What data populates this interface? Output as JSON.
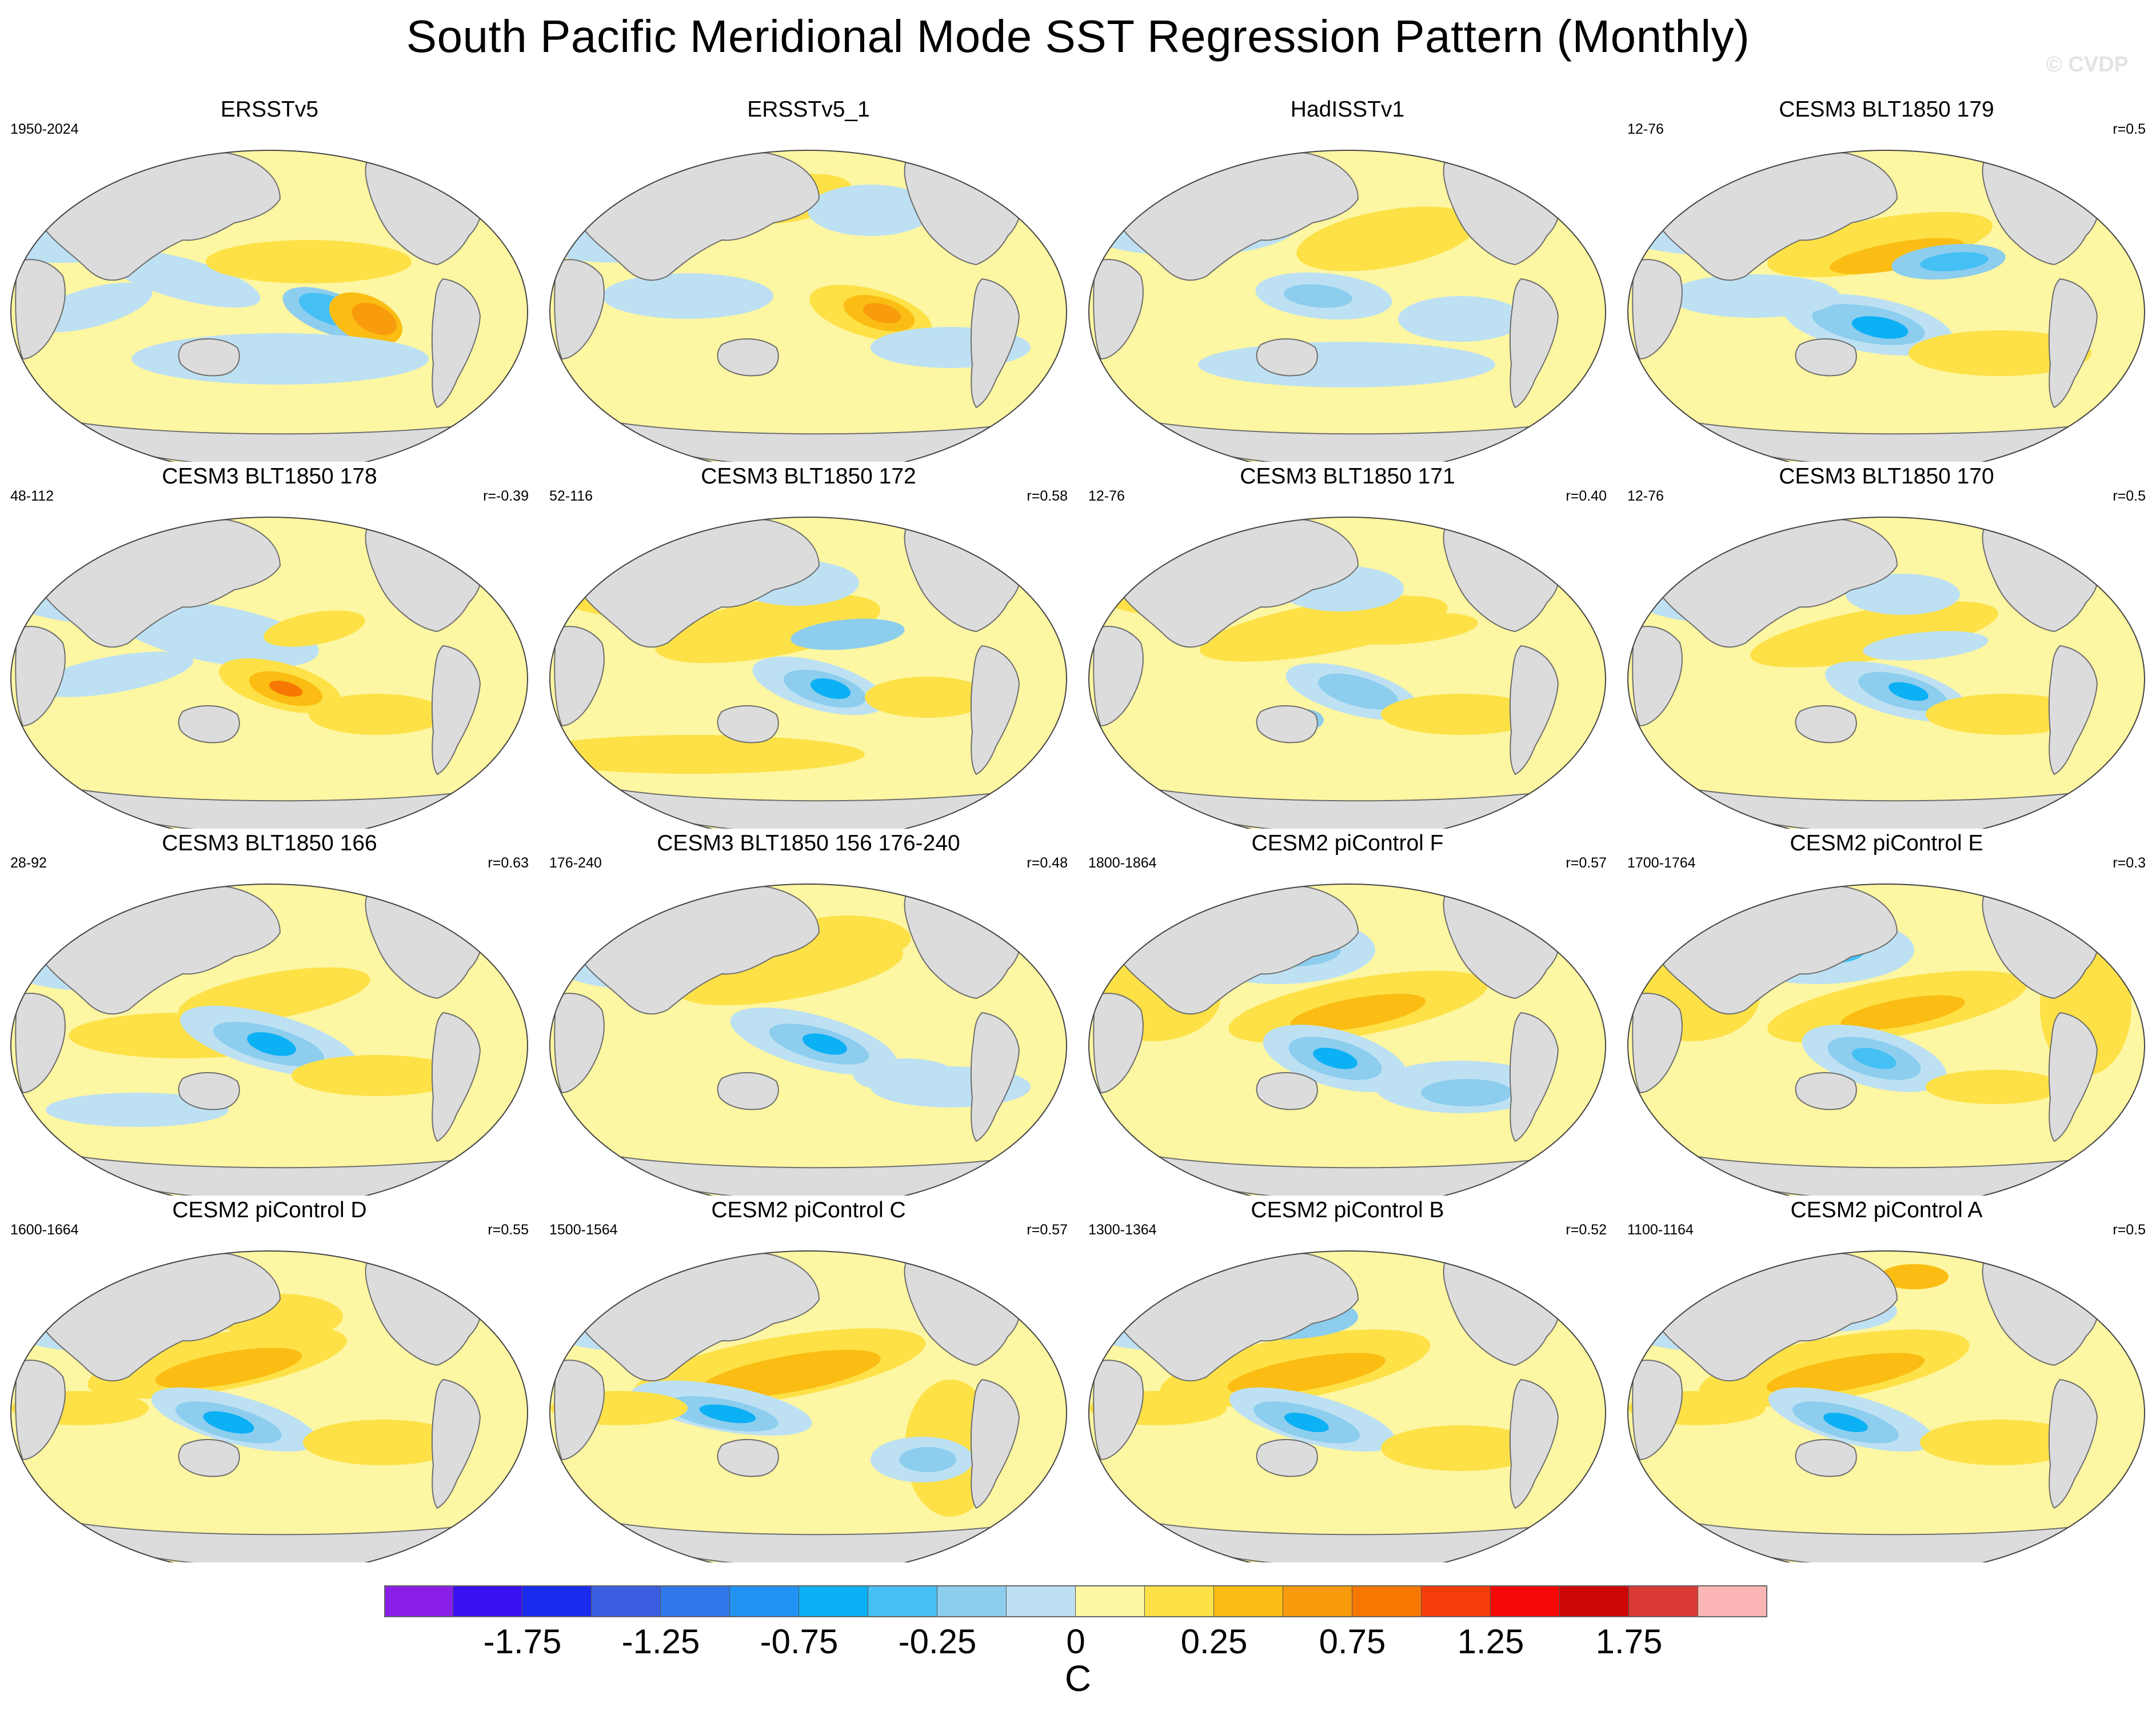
{
  "title": "South Pacific Meridional Mode SST Regression Pattern (Monthly)",
  "watermark": "© CVDP",
  "panels": [
    {
      "title": "ERSSTv5",
      "years": "1950-2024",
      "r": "",
      "variant": 0
    },
    {
      "title": "ERSSTv5_1",
      "years": "",
      "r": "",
      "variant": 1
    },
    {
      "title": "HadISSTv1",
      "years": "",
      "r": "",
      "variant": 2
    },
    {
      "title": "CESM3 BLT1850 179",
      "years": "12-76",
      "r": "r=0.5",
      "variant": 3
    },
    {
      "title": "CESM3 BLT1850 178",
      "years": "48-112",
      "r": "r=-0.39",
      "variant": 4
    },
    {
      "title": "CESM3 BLT1850 172",
      "years": "52-116",
      "r": "r=0.58",
      "variant": 5
    },
    {
      "title": "CESM3 BLT1850 171",
      "years": "12-76",
      "r": "r=0.40",
      "variant": 6
    },
    {
      "title": "CESM3 BLT1850 170",
      "years": "12-76",
      "r": "r=0.5",
      "variant": 7
    },
    {
      "title": "CESM3 BLT1850 166",
      "years": "28-92",
      "r": "r=0.63",
      "variant": 8
    },
    {
      "title": "CESM3 BLT1850 156 176-240",
      "years": "176-240",
      "r": "r=0.48",
      "variant": 9
    },
    {
      "title": "CESM2 piControl F",
      "years": "1800-1864",
      "r": "r=0.57",
      "variant": 10
    },
    {
      "title": "CESM2 piControl E",
      "years": "1700-1764",
      "r": "r=0.3",
      "variant": 11
    },
    {
      "title": "CESM2 piControl D",
      "years": "1600-1664",
      "r": "r=0.55",
      "variant": 12
    },
    {
      "title": "CESM2 piControl C",
      "years": "1500-1564",
      "r": "r=0.57",
      "variant": 13
    },
    {
      "title": "CESM2 piControl B",
      "years": "1300-1364",
      "r": "r=0.52",
      "variant": 14
    },
    {
      "title": "CESM2 piControl A",
      "years": "1100-1164",
      "r": "r=0.5",
      "variant": 15
    }
  ],
  "colorbar": {
    "unit": "C",
    "colors": [
      "#8a1de6",
      "#3a0ff2",
      "#1a2bf0",
      "#3b5ee0",
      "#2f78ea",
      "#2293f4",
      "#0cb0f5",
      "#45c0f4",
      "#8dcdee",
      "#bde1f3",
      "#fdf6a2",
      "#fde147",
      "#fbbd13",
      "#f89b0c",
      "#f67803",
      "#f63c09",
      "#f50808",
      "#cd0606",
      "#d93a35",
      "#fdb6b6"
    ],
    "tick_labels": [
      "-1.75",
      "-1.25",
      "-0.75",
      "-0.25",
      "0",
      "0.25",
      "0.75",
      "1.25",
      "1.75"
    ],
    "tick_boundaries": [
      2,
      4,
      6,
      8,
      10,
      12,
      14,
      16,
      18
    ]
  },
  "legend_colors": {
    "land": "#dcdcdc",
    "ocean_cold": "#bde1f3",
    "ocean_warm": "#fdf6a2"
  }
}
